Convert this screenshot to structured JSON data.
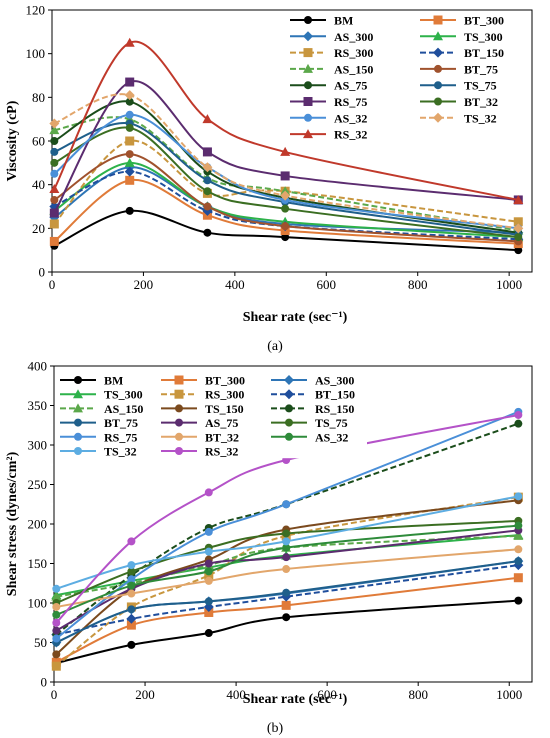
{
  "chart_data": [
    {
      "type": "line",
      "panel_label": "(a)",
      "xlabel": "Shear rate (sec⁻¹)",
      "ylabel": "Viscosity (cP)",
      "xlim": [
        0,
        1050
      ],
      "ylim": [
        0,
        120
      ],
      "xticks": [
        0,
        200,
        400,
        600,
        800,
        1000
      ],
      "yticks": [
        0,
        20,
        40,
        60,
        80,
        100,
        120
      ],
      "smooth": true,
      "grid": false,
      "legend_position": "top-right",
      "x": [
        5.1,
        170,
        340,
        510,
        1020
      ],
      "series": [
        {
          "name": "BM",
          "color": "#000000",
          "marker": "circle",
          "dash": false,
          "values": [
            12,
            28,
            18,
            16,
            10
          ]
        },
        {
          "name": "BT_300",
          "color": "#E07B39",
          "marker": "square",
          "dash": false,
          "values": [
            14,
            42,
            26,
            19,
            13
          ]
        },
        {
          "name": "AS_300",
          "color": "#2E75B6",
          "marker": "diamond",
          "dash": false,
          "values": [
            25,
            48,
            30,
            22,
            18
          ]
        },
        {
          "name": "TS_300",
          "color": "#2DB24A",
          "marker": "triangle",
          "dash": false,
          "values": [
            28,
            50,
            30,
            23,
            16
          ]
        },
        {
          "name": "RS_300",
          "color": "#C8963E",
          "marker": "square",
          "dash": true,
          "values": [
            22,
            60,
            36,
            37,
            23
          ]
        },
        {
          "name": "BT_150",
          "color": "#1F4E9C",
          "marker": "diamond",
          "dash": true,
          "values": [
            30,
            46,
            28,
            21,
            15
          ]
        },
        {
          "name": "AS_150",
          "color": "#5BA84A",
          "marker": "triangle",
          "dash": true,
          "values": [
            65,
            70,
            43,
            37,
            19
          ]
        },
        {
          "name": "BT_75",
          "color": "#A0522D",
          "marker": "circle",
          "dash": false,
          "values": [
            33,
            54,
            30,
            21,
            14
          ]
        },
        {
          "name": "AS_75",
          "color": "#1B4D1B",
          "marker": "circle",
          "dash": false,
          "values": [
            60,
            78,
            46,
            34,
            18
          ]
        },
        {
          "name": "TS_75",
          "color": "#1F5F8B",
          "marker": "circle",
          "dash": false,
          "values": [
            55,
            68,
            42,
            32,
            17
          ]
        },
        {
          "name": "RS_75",
          "color": "#5B2C6F",
          "marker": "square",
          "dash": false,
          "values": [
            27,
            87,
            55,
            44,
            33
          ]
        },
        {
          "name": "BT_32",
          "color": "#3B6E22",
          "marker": "circle",
          "dash": false,
          "values": [
            50,
            66,
            37,
            29,
            16
          ]
        },
        {
          "name": "AS_32",
          "color": "#4A8FD8",
          "marker": "circle",
          "dash": false,
          "values": [
            45,
            72,
            48,
            33,
            20
          ]
        },
        {
          "name": "TS_32",
          "color": "#E2A66B",
          "marker": "diamond",
          "dash": true,
          "values": [
            68,
            81,
            48,
            35,
            20
          ]
        },
        {
          "name": "RS_32",
          "color": "#C0392B",
          "marker": "triangle",
          "dash": false,
          "values": [
            38,
            105,
            70,
            55,
            33
          ]
        }
      ]
    },
    {
      "type": "line",
      "panel_label": "(b)",
      "xlabel": "Shear rate (sec⁻¹)",
      "ylabel": "Shear stress (dynes/cm²)",
      "xlim": [
        0,
        1050
      ],
      "ylim": [
        0,
        400
      ],
      "xticks": [
        0,
        200,
        400,
        600,
        800,
        1000
      ],
      "yticks": [
        0,
        50,
        100,
        150,
        200,
        250,
        300,
        350,
        400
      ],
      "smooth": true,
      "grid": false,
      "legend_position": "top",
      "x": [
        5.1,
        170,
        340,
        510,
        1020
      ],
      "series": [
        {
          "name": "BM",
          "color": "#000000",
          "marker": "circle",
          "dash": false,
          "values": [
            24,
            47,
            62,
            82,
            103
          ]
        },
        {
          "name": "BT_300",
          "color": "#E07B39",
          "marker": "square",
          "dash": false,
          "values": [
            25,
            72,
            88,
            97,
            132
          ]
        },
        {
          "name": "AS_300",
          "color": "#2E75B6",
          "marker": "diamond",
          "dash": false,
          "values": [
            50,
            92,
            102,
            112,
            153
          ]
        },
        {
          "name": "TS_300",
          "color": "#2DB24A",
          "marker": "triangle",
          "dash": false,
          "values": [
            110,
            128,
            145,
            160,
            186
          ]
        },
        {
          "name": "RS_300",
          "color": "#C8963E",
          "marker": "square",
          "dash": true,
          "values": [
            20,
            95,
            135,
            185,
            234
          ]
        },
        {
          "name": "BT_150",
          "color": "#1F4E9C",
          "marker": "diamond",
          "dash": true,
          "values": [
            60,
            80,
            95,
            108,
            148
          ]
        },
        {
          "name": "AS_150",
          "color": "#5BA84A",
          "marker": "triangle",
          "dash": true,
          "values": [
            108,
            125,
            148,
            170,
            185
          ]
        },
        {
          "name": "TS_150",
          "color": "#7B4A1E",
          "marker": "circle",
          "dash": false,
          "values": [
            35,
            118,
            155,
            193,
            230
          ]
        },
        {
          "name": "RS_150",
          "color": "#1B4D1B",
          "marker": "circle",
          "dash": true,
          "values": [
            60,
            135,
            195,
            225,
            327
          ]
        },
        {
          "name": "BT_75",
          "color": "#1F5F8B",
          "marker": "circle",
          "dash": false,
          "values": [
            50,
            92,
            102,
            113,
            153
          ]
        },
        {
          "name": "AS_75",
          "color": "#5B2C6F",
          "marker": "circle",
          "dash": false,
          "values": [
            65,
            118,
            150,
            158,
            192
          ]
        },
        {
          "name": "TS_75",
          "color": "#3B6E22",
          "marker": "circle",
          "dash": false,
          "values": [
            100,
            140,
            170,
            188,
            204
          ]
        },
        {
          "name": "RS_75",
          "color": "#4A8FD8",
          "marker": "circle",
          "dash": false,
          "values": [
            55,
            130,
            190,
            225,
            342
          ]
        },
        {
          "name": "BT_32",
          "color": "#E2A66B",
          "marker": "circle",
          "dash": false,
          "values": [
            95,
            112,
            128,
            143,
            168
          ]
        },
        {
          "name": "AS_32",
          "color": "#2E8B3A",
          "marker": "circle",
          "dash": false,
          "values": [
            85,
            122,
            140,
            170,
            198
          ]
        },
        {
          "name": "TS_32",
          "color": "#5DADE2",
          "marker": "circle",
          "dash": false,
          "values": [
            118,
            148,
            165,
            178,
            235
          ]
        },
        {
          "name": "RS_32",
          "color": "#B452C8",
          "marker": "circle",
          "dash": false,
          "values": [
            75,
            178,
            240,
            281,
            338
          ]
        }
      ]
    }
  ]
}
